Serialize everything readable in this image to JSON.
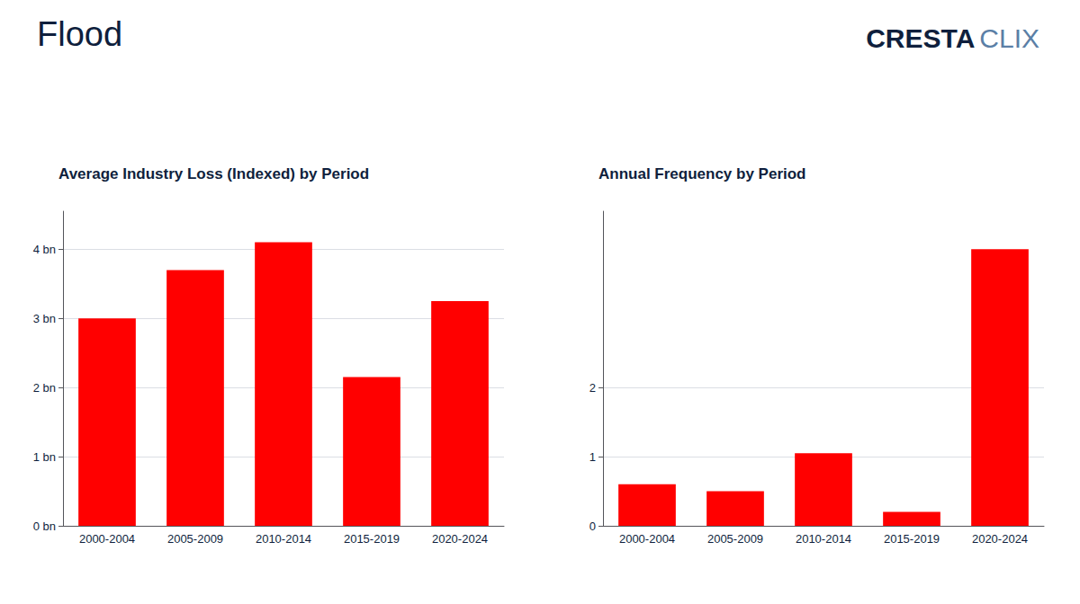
{
  "title": "Flood",
  "annotations": [
    {
      "text": "CRESTA",
      "color": "#0f1f3d"
    },
    {
      "text": "CLIX",
      "color": "#5b7fa6"
    }
  ],
  "chart_data": [
    {
      "type": "bar",
      "title": "Average Industry Loss (Indexed) by Period",
      "categories": [
        "2000-2004",
        "2005-2009",
        "2010-2014",
        "2015-2019",
        "2020-2024"
      ],
      "values": [
        3.0,
        3.7,
        4.1,
        2.15,
        3.25
      ],
      "color": "#ff0000",
      "ylim": [
        0,
        4.55
      ],
      "yticks": [
        {
          "value": 0,
          "label": "0 bn"
        },
        {
          "value": 1,
          "label": "1 bn"
        },
        {
          "value": 2,
          "label": "2 bn"
        },
        {
          "value": 3,
          "label": "3 bn"
        },
        {
          "value": 4,
          "label": "4 bn"
        }
      ],
      "grid": true
    },
    {
      "type": "bar",
      "title": "Annual Frequency by Period",
      "categories": [
        "2000-2004",
        "2005-2009",
        "2010-2014",
        "2015-2019",
        "2020-2024"
      ],
      "values": [
        0.6,
        0.5,
        1.05,
        0.2,
        4.0
      ],
      "color": "#ff0000",
      "ylim": [
        0,
        4.55
      ],
      "yticks": [
        0,
        1,
        2
      ],
      "grid": true
    }
  ]
}
